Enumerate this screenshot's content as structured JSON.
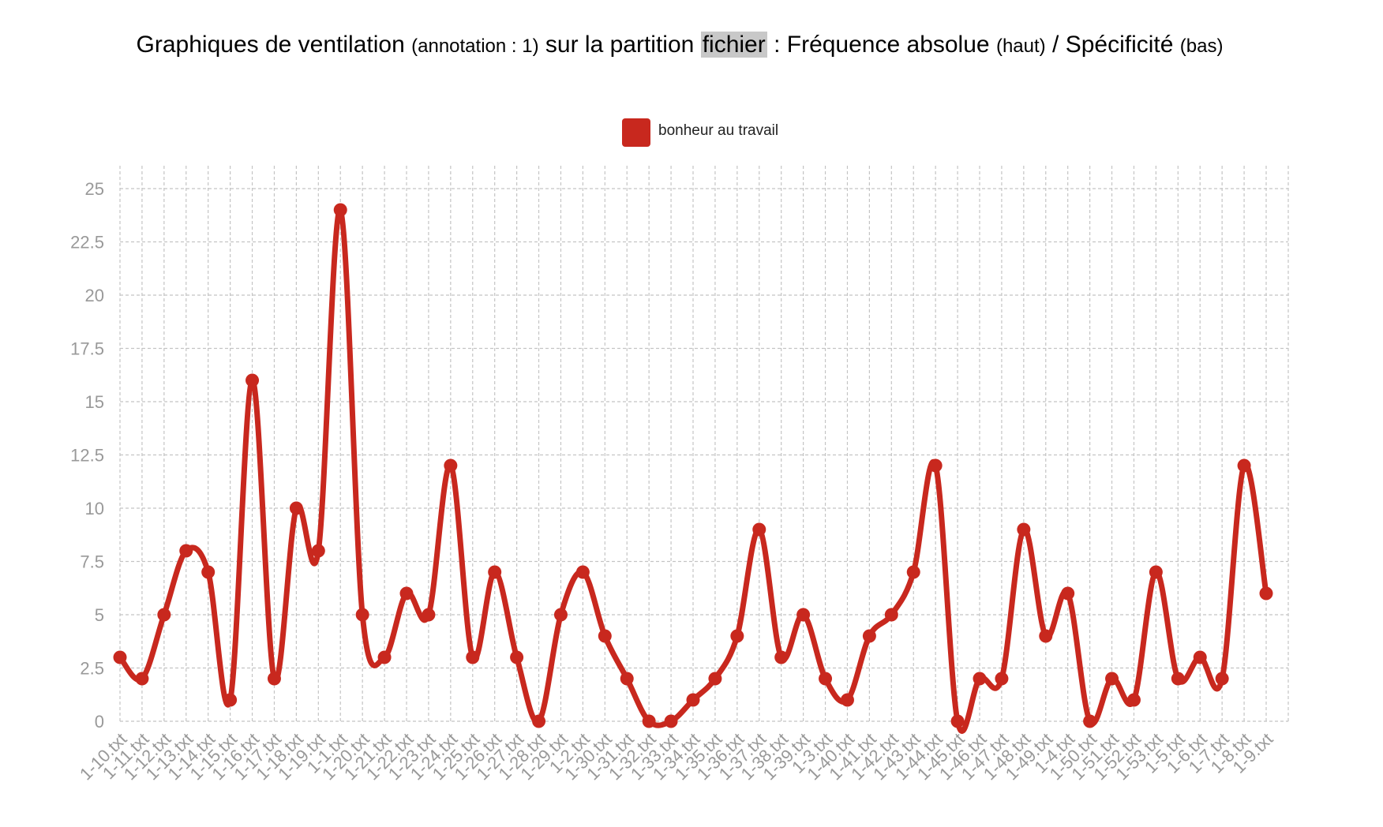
{
  "title": {
    "part1": "Graphiques de ventilation",
    "part2": "(annotation : 1)",
    "part3": "sur la partition",
    "part4": "fichier",
    "part5": ":",
    "part6": "Fréquence absolue",
    "part7": "(haut)",
    "part8": "/",
    "part9": "Spécificité",
    "part10": "(bas)"
  },
  "chart_data": {
    "type": "line",
    "title": "Graphiques de ventilation (annotation : 1) sur la partition fichier : Fréquence absolue (haut) / Spécificité (bas)",
    "xlabel": "",
    "ylabel": "",
    "ylim": [
      0,
      25
    ],
    "yticks": [
      "0",
      "2.5",
      "5",
      "7.5",
      "10",
      "12.5",
      "15",
      "17.5",
      "20",
      "22.5",
      "25"
    ],
    "grid": true,
    "legend_position": "top-center",
    "categories": [
      "1-10.txt",
      "1-11.txt",
      "1-12.txt",
      "1-13.txt",
      "1-14.txt",
      "1-15.txt",
      "1-16.txt",
      "1-17.txt",
      "1-18.txt",
      "1-19.txt",
      "1-1.txt",
      "1-20.txt",
      "1-21.txt",
      "1-22.txt",
      "1-23.txt",
      "1-24.txt",
      "1-25.txt",
      "1-26.txt",
      "1-27.txt",
      "1-28.txt",
      "1-29.txt",
      "1-2.txt",
      "1-30.txt",
      "1-31.txt",
      "1-32.txt",
      "1-33.txt",
      "1-34.txt",
      "1-35.txt",
      "1-36.txt",
      "1-37.txt",
      "1-38.txt",
      "1-39.txt",
      "1-3.txt",
      "1-40.txt",
      "1-41.txt",
      "1-42.txt",
      "1-43.txt",
      "1-44.txt",
      "1-45.txt",
      "1-46.txt",
      "1-47.txt",
      "1-48.txt",
      "1-49.txt",
      "1-4.txt",
      "1-50.txt",
      "1-51.txt",
      "1-52.txt",
      "1-53.txt",
      "1-5.txt",
      "1-6.txt",
      "1-7.txt",
      "1-8.txt",
      "1-9.txt"
    ],
    "series": [
      {
        "name": "bonheur au travail",
        "color": "#c8281e",
        "values": [
          3,
          2,
          5,
          8,
          7,
          1,
          16,
          2,
          10,
          8,
          24,
          5,
          3,
          6,
          5,
          12,
          3,
          7,
          3,
          0,
          5,
          7,
          4,
          2,
          0,
          0,
          1,
          2,
          4,
          9,
          3,
          5,
          2,
          1,
          4,
          5,
          7,
          12,
          0,
          2,
          2,
          9,
          4,
          6,
          0,
          2,
          1,
          7,
          2,
          3,
          2,
          12,
          6
        ]
      }
    ]
  }
}
